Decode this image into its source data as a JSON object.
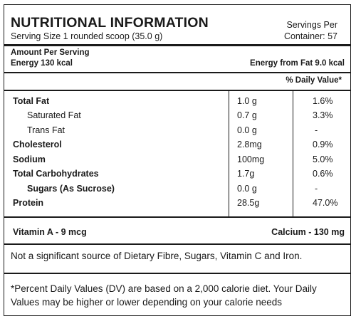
{
  "header": {
    "title": "NUTRITIONAL INFORMATION",
    "serving_size": "Serving Size 1 rounded scoop (35.0 g)",
    "servings_per_line1": "Servings Per",
    "servings_per_line2": "Container: 57"
  },
  "amount": {
    "heading": "Amount Per Serving",
    "energy": "Energy 130 kcal",
    "energy_from_fat": "Energy from Fat 9.0 kcal"
  },
  "table": {
    "dv_header": "% Daily Value*",
    "rows": [
      {
        "name": "Total Fat",
        "amount": "1.0 g",
        "dv": "1.6%"
      },
      {
        "name": "Saturated Fat",
        "amount": "0.7 g",
        "dv": "3.3%"
      },
      {
        "name": "Trans Fat",
        "amount": "0.0 g",
        "dv": "-"
      },
      {
        "name": "Cholesterol",
        "amount": "2.8mg",
        "dv": "0.9%"
      },
      {
        "name": "Sodium",
        "amount": "100mg",
        "dv": "5.0%"
      },
      {
        "name": "Total Carbohydrates",
        "amount": "1.7g",
        "dv": "0.6%"
      },
      {
        "name": "Sugars (As Sucrose)",
        "amount": "0.0 g",
        "dv": "-"
      },
      {
        "name": "Protein",
        "amount": "28.5g",
        "dv": "47.0%"
      }
    ]
  },
  "vitamins": {
    "vitamin_a": "Vitamin A - 9 mcg",
    "calcium": "Calcium - 130 mg"
  },
  "notes": {
    "not_significant": "Not a significant source of Dietary Fibre, Sugars, Vitamin C and Iron.",
    "footnote_line1": "*Percent Daily Values (DV) are based on a 2,000 calorie diet. Your Daily",
    "footnote_line2": "Values may be higher or lower depending on your calorie needs"
  }
}
